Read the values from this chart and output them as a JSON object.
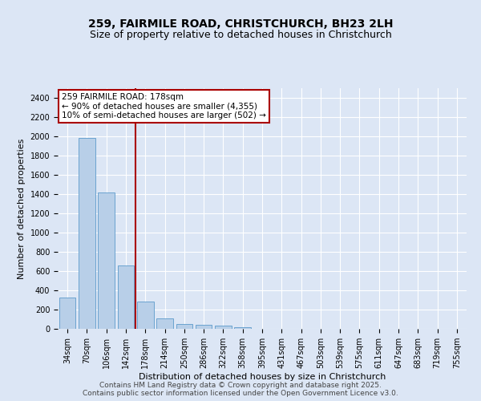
{
  "title": "259, FAIRMILE ROAD, CHRISTCHURCH, BH23 2LH",
  "subtitle": "Size of property relative to detached houses in Christchurch",
  "xlabel": "Distribution of detached houses by size in Christchurch",
  "ylabel": "Number of detached properties",
  "footer_line1": "Contains HM Land Registry data © Crown copyright and database right 2025.",
  "footer_line2": "Contains public sector information licensed under the Open Government Licence v3.0.",
  "categories": [
    "34sqm",
    "70sqm",
    "106sqm",
    "142sqm",
    "178sqm",
    "214sqm",
    "250sqm",
    "286sqm",
    "322sqm",
    "358sqm",
    "395sqm",
    "431sqm",
    "467sqm",
    "503sqm",
    "539sqm",
    "575sqm",
    "611sqm",
    "647sqm",
    "683sqm",
    "719sqm",
    "755sqm"
  ],
  "bar_values": [
    325,
    1980,
    1420,
    660,
    285,
    105,
    50,
    40,
    30,
    20,
    0,
    0,
    0,
    0,
    0,
    0,
    0,
    0,
    0,
    0,
    0
  ],
  "bar_color": "#b8cfe8",
  "bar_edge_color": "#6ba3d0",
  "ylim": [
    0,
    2500
  ],
  "yticks": [
    0,
    200,
    400,
    600,
    800,
    1000,
    1200,
    1400,
    1600,
    1800,
    2000,
    2200,
    2400
  ],
  "vline_x_index": 4,
  "vline_color": "#aa0000",
  "annotation_line1": "259 FAIRMILE ROAD: 178sqm",
  "annotation_line2": "← 90% of detached houses are smaller (4,355)",
  "annotation_line3": "10% of semi-detached houses are larger (502) →",
  "annotation_box_color": "#aa0000",
  "fig_bg_color": "#dce6f5",
  "plot_bg_color": "#dce6f5",
  "grid_color": "#ffffff",
  "title_fontsize": 10,
  "subtitle_fontsize": 9,
  "ylabel_fontsize": 8,
  "xlabel_fontsize": 8,
  "tick_fontsize": 7,
  "footer_fontsize": 6.5,
  "footer_color": "#444444"
}
